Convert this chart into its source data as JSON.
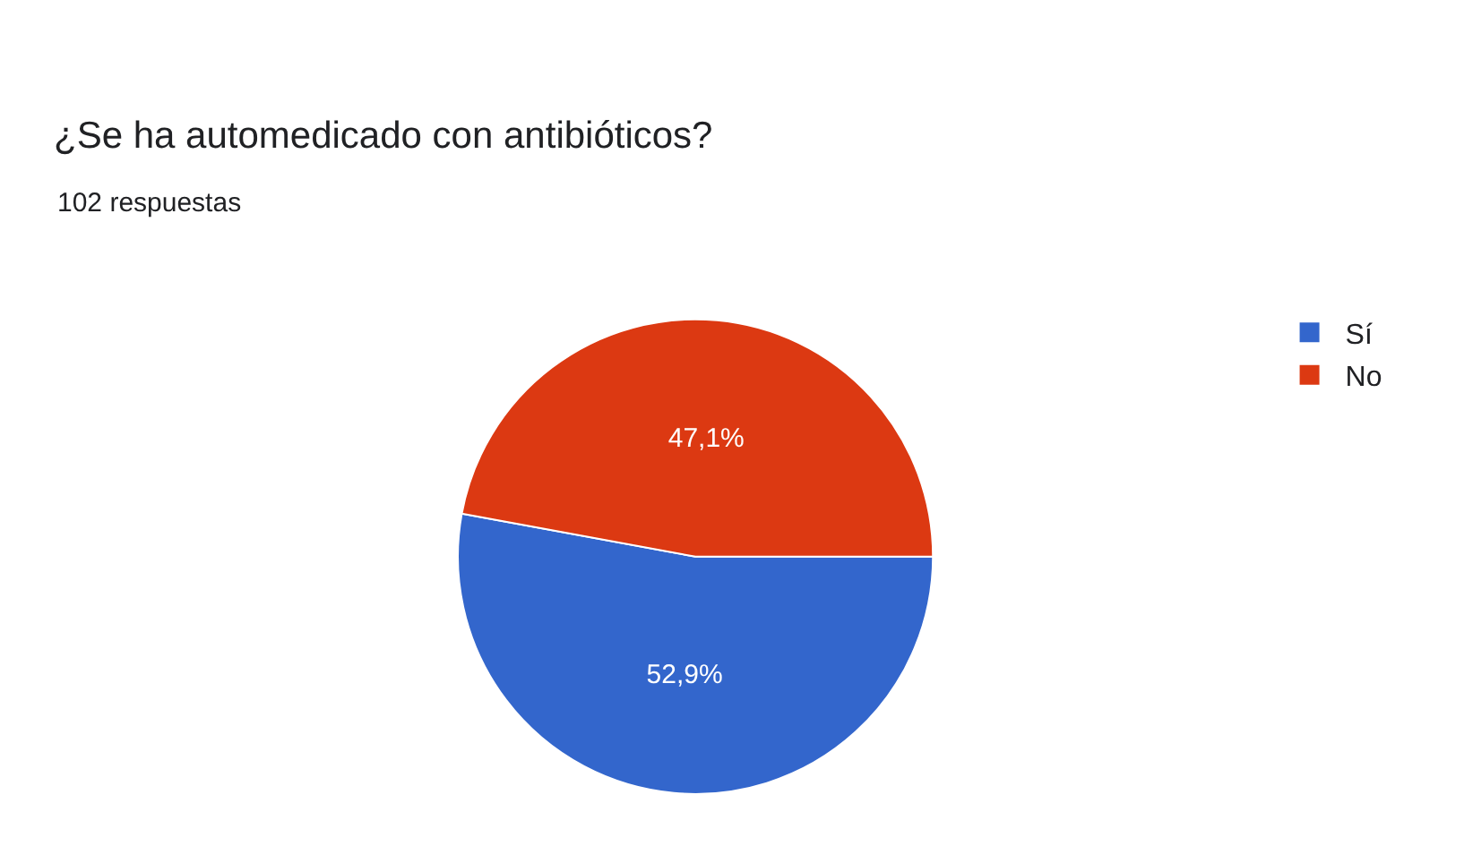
{
  "chart_data": {
    "type": "pie",
    "title": "¿Se ha automedicado con antibióticos?",
    "subtitle": "102 respuestas",
    "categories": [
      "Sí",
      "No"
    ],
    "values": [
      52.9,
      47.1
    ],
    "colors": [
      "#3366cc",
      "#dc3912"
    ],
    "value_labels": [
      "52,9%",
      "47,1%"
    ],
    "legend": "right"
  }
}
